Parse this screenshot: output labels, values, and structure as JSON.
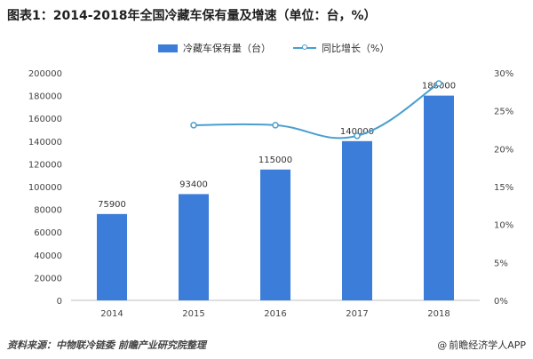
{
  "title": "图表1：2014-2018年全国冷藏车保有量及增速（单位：台，%）",
  "legend": {
    "bar_label": "冷藏车保有量（台）",
    "line_label": "同比增长（%）"
  },
  "footer": {
    "source": "资料来源：中物联冷链委 前瞻产业研究院整理",
    "brand": "前瞻经济学人APP"
  },
  "colors": {
    "bar": "#3b7dd8",
    "line": "#4a9fcf",
    "axis": "#bfbfbf"
  },
  "chart_data": {
    "type": "bar",
    "categories": [
      "2014",
      "2015",
      "2016",
      "2017",
      "2018"
    ],
    "series": [
      {
        "name": "冷藏车保有量（台）",
        "type": "bar",
        "axis": "left",
        "values": [
          75900,
          93400,
          115000,
          140000,
          180000
        ],
        "labels": [
          "75900",
          "93400",
          "115000",
          "140000",
          "180000"
        ]
      },
      {
        "name": "同比增长（%）",
        "type": "line",
        "axis": "right",
        "values": [
          null,
          23.1,
          23.1,
          21.7,
          28.6
        ]
      }
    ],
    "y_left": {
      "min": 0,
      "max": 200000,
      "step": 20000,
      "ticks": [
        "0",
        "20000",
        "40000",
        "60000",
        "80000",
        "100000",
        "120000",
        "140000",
        "160000",
        "180000",
        "200000"
      ]
    },
    "y_right": {
      "min": 0,
      "max": 30,
      "step": 5,
      "ticks": [
        "0%",
        "5%",
        "10%",
        "15%",
        "20%",
        "25%",
        "30%"
      ]
    },
    "grid": false,
    "legend_position": "top"
  }
}
